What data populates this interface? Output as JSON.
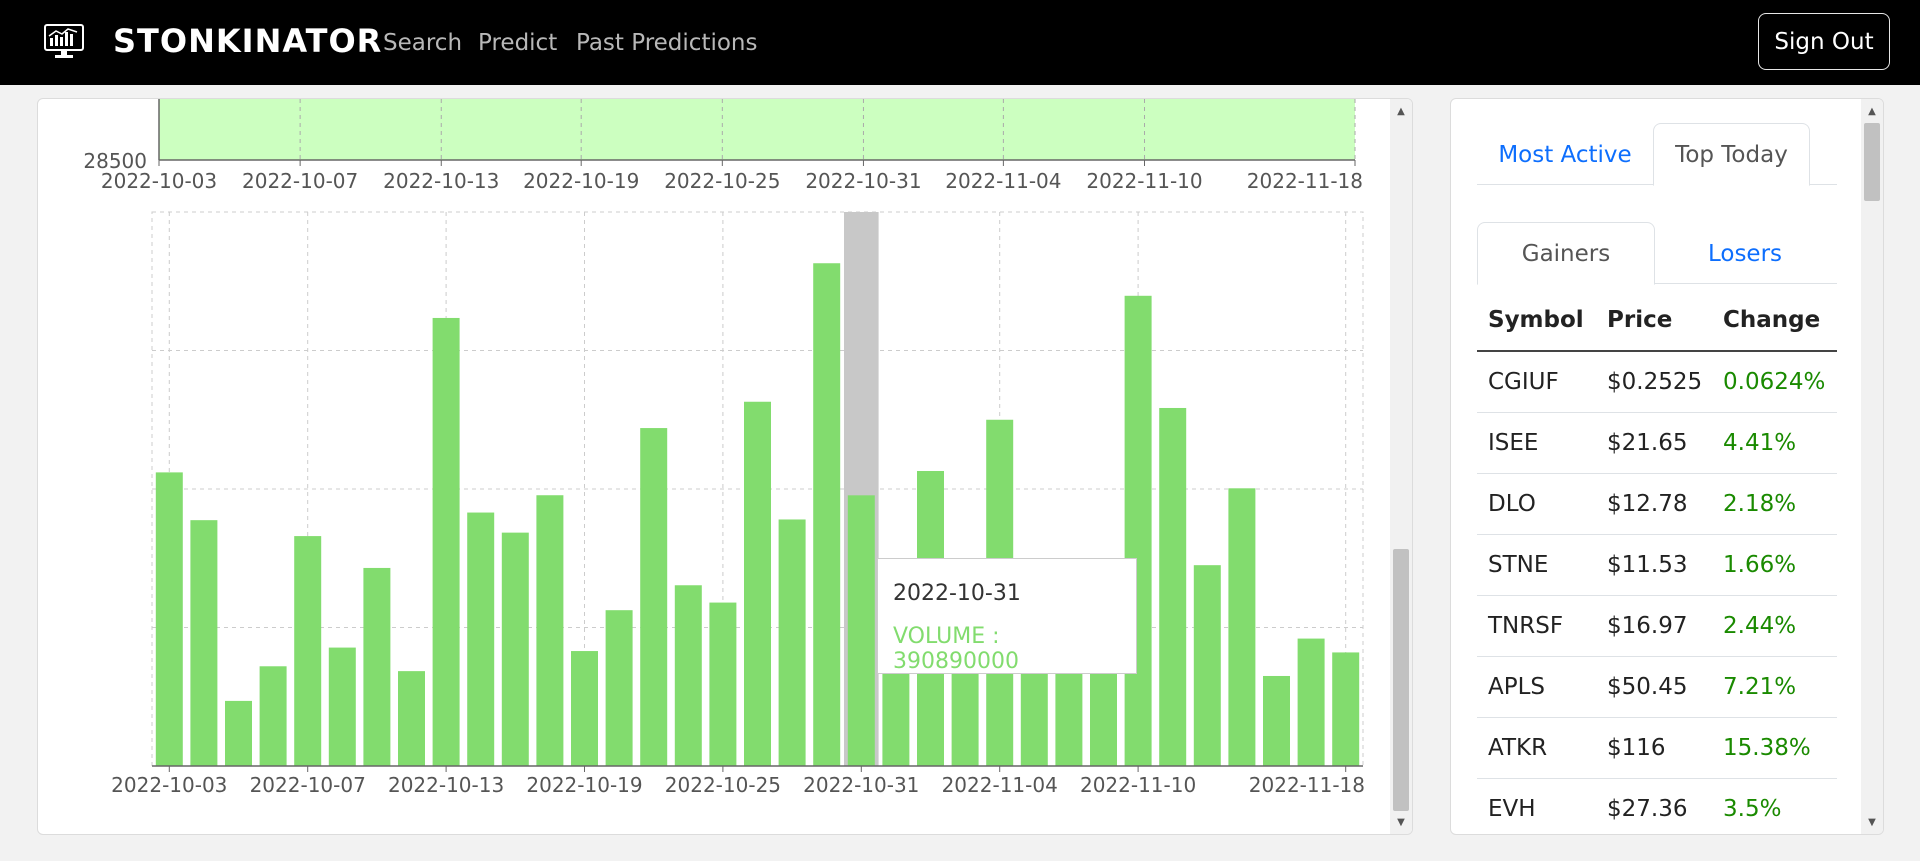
{
  "nav": {
    "brand": "STONKINATOR",
    "links": [
      "Search",
      "Predict",
      "Past Predictions"
    ],
    "sign_out": "Sign Out"
  },
  "colors": {
    "bar": "#82dc6e",
    "brush": "#ccffc0",
    "gain": "#1a8a00",
    "link": "#0d6efd"
  },
  "chart_data": [
    {
      "type": "area",
      "title": "brush navigator",
      "ytick": "28500",
      "xticks": [
        "2022-10-03",
        "2022-10-07",
        "2022-10-13",
        "2022-10-19",
        "2022-10-25",
        "2022-10-31",
        "2022-11-04",
        "2022-11-10",
        "2022-11-18"
      ]
    },
    {
      "type": "bar",
      "series_name": "VOLUME",
      "ylim": [
        0,
        800000000
      ],
      "xticks": [
        "2022-10-03",
        "2022-10-07",
        "2022-10-13",
        "2022-10-19",
        "2022-10-25",
        "2022-10-31",
        "2022-11-04",
        "2022-11-10",
        "2022-11-18"
      ],
      "categories": [
        "2022-10-03",
        "2022-10-04",
        "2022-10-05",
        "2022-10-06",
        "2022-10-07",
        "2022-10-10",
        "2022-10-11",
        "2022-10-12",
        "2022-10-13",
        "2022-10-14",
        "2022-10-17",
        "2022-10-18",
        "2022-10-19",
        "2022-10-20",
        "2022-10-21",
        "2022-10-24",
        "2022-10-25",
        "2022-10-26",
        "2022-10-27",
        "2022-10-28",
        "2022-10-31",
        "2022-11-01",
        "2022-11-02",
        "2022-11-03",
        "2022-11-04",
        "2022-11-07",
        "2022-11-08",
        "2022-11-09",
        "2022-11-10",
        "2022-11-11",
        "2022-11-14",
        "2022-11-15",
        "2022-11-16",
        "2022-11-17",
        "2022-11-18"
      ],
      "values": [
        424000000,
        355000000,
        94000000,
        144000000,
        332000000,
        171000000,
        286000000,
        137000000,
        647000000,
        366000000,
        337000000,
        391000000,
        166000000,
        225000000,
        488000000,
        261000000,
        236000000,
        526000000,
        356000000,
        726000000,
        390890000,
        242000000,
        426000000,
        240000000,
        500000000,
        200000000,
        180000000,
        205000000,
        679000000,
        517000000,
        290000000,
        401000000,
        130000000,
        184000000,
        164000000
      ],
      "tooltip": {
        "date": "2022-10-31",
        "label": "VOLUME : 390890000"
      }
    }
  ],
  "side": {
    "top_tabs": [
      "Most Active",
      "Top Today"
    ],
    "sub_tabs": [
      "Gainers",
      "Losers"
    ],
    "columns": [
      "Symbol",
      "Price",
      "Change"
    ],
    "rows": [
      [
        "CGIUF",
        "$0.2525",
        "0.0624%"
      ],
      [
        "ISEE",
        "$21.65",
        "4.41%"
      ],
      [
        "DLO",
        "$12.78",
        "2.18%"
      ],
      [
        "STNE",
        "$11.53",
        "1.66%"
      ],
      [
        "TNRSF",
        "$16.97",
        "2.44%"
      ],
      [
        "APLS",
        "$50.45",
        "7.21%"
      ],
      [
        "ATKR",
        "$116",
        "15.38%"
      ],
      [
        "EVH",
        "$27.36",
        "3.5%"
      ]
    ]
  }
}
